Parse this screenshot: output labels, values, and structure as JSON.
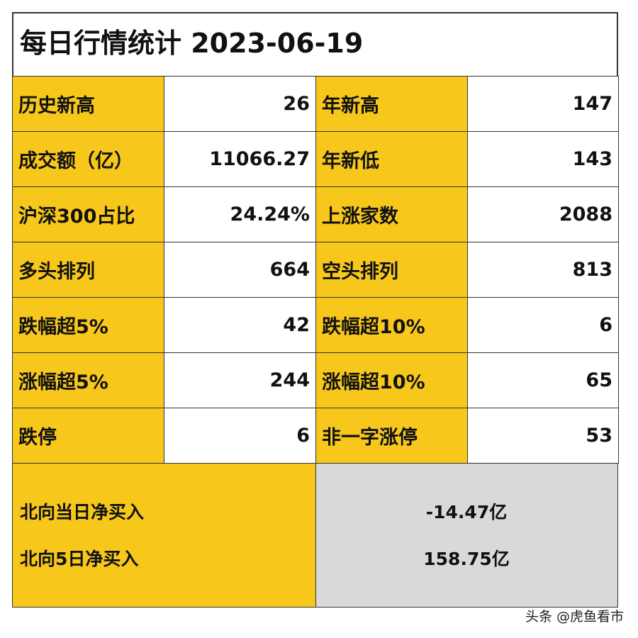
{
  "title": "每日行情统计 2023-06-19",
  "table": {
    "rows": [
      [
        "历史新高",
        "26",
        "年新高",
        "147"
      ],
      [
        "成交额（亿）",
        "11066.27",
        "年新低",
        "143"
      ],
      [
        "沪深300占比",
        "24.24%",
        "上涨家数",
        "2088"
      ],
      [
        "多头排列",
        "664",
        "空头排列",
        "813"
      ],
      [
        "跌幅超5%",
        "42",
        "跌幅超10%",
        "6"
      ],
      [
        "涨幅超5%",
        "244",
        "涨幅超10%",
        "65"
      ],
      [
        "跌停",
        "6",
        "非一字涨停",
        "53"
      ]
    ]
  },
  "north": [
    [
      "北向当日净买入",
      "-14.47亿"
    ],
    [
      "北向5日净买入",
      "158.75亿"
    ]
  ],
  "watermark": "头条 @虎鱼看市"
}
